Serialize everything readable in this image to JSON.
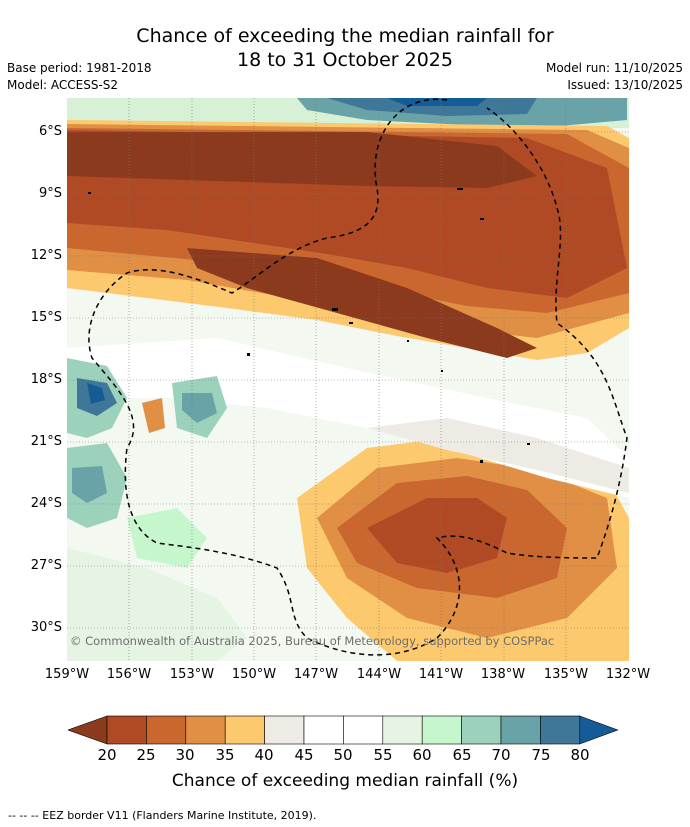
{
  "header": {
    "title_line1": "Chance of exceeding the median rainfall for",
    "title_line2": "18 to 31 October 2025",
    "base_period": "Base period: 1981-2018",
    "model": "Model: ACCESS-S2",
    "model_run": "Model run: 11/10/2025",
    "issued": "Issued: 13/10/2025"
  },
  "map": {
    "copyright": "© Commonwealth of Australia 2025, Bureau of Meteorology, supported by COSPPac",
    "lat_ticks": [
      "6°S",
      "9°S",
      "12°S",
      "15°S",
      "18°S",
      "21°S",
      "24°S",
      "27°S",
      "30°S"
    ],
    "lon_ticks": [
      "159°W",
      "156°W",
      "153°W",
      "150°W",
      "147°W",
      "144°W",
      "141°W",
      "138°W",
      "135°W",
      "132°W"
    ]
  },
  "colorbar": {
    "labels": [
      "20",
      "25",
      "30",
      "35",
      "40",
      "45",
      "50",
      "55",
      "60",
      "65",
      "70",
      "75",
      "80"
    ],
    "colors": [
      "#8b3a1e",
      "#b04a25",
      "#c9672f",
      "#e08f44",
      "#fdc96e",
      "#eeebe4",
      "#ffffff",
      "#ffffff",
      "#e6f4e4",
      "#c6f7cc",
      "#9cd1bb",
      "#6aa3a7",
      "#3f7798",
      "#155b96"
    ],
    "title": "Chance of exceeding median rainfall (%)"
  },
  "footer": "--  --  -- EEZ border V11 (Flanders Marine Institute, 2019)."
}
